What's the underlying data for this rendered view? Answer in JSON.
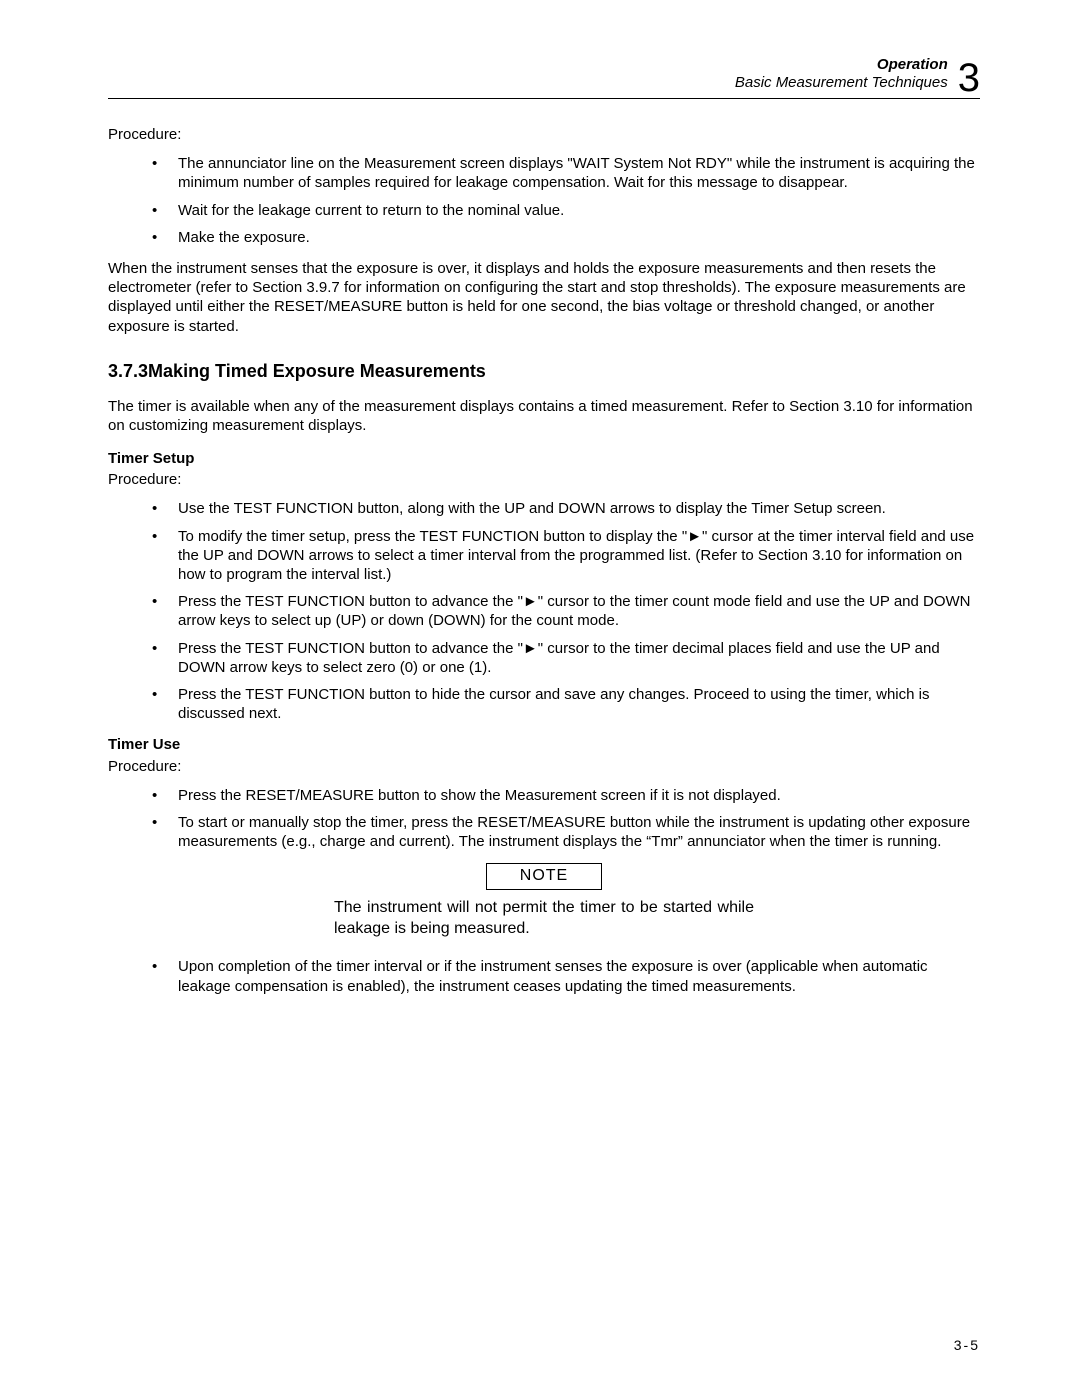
{
  "header": {
    "line1": "Operation",
    "line2": "Basic Measurement Techniques",
    "chapter": "3"
  },
  "intro": {
    "procedure_label": "Procedure:",
    "bullets": [
      "The annunciator line on the Measurement screen displays \"WAIT System Not RDY\" while the instrument is acquiring the minimum number of samples required for leakage compensation.  Wait for this message to disappear.",
      "Wait for the leakage current to return to the nominal value.",
      "Make the exposure."
    ],
    "para_after": "When the instrument senses that the exposure is over, it displays and holds the exposure measurements and then resets the electrometer (refer to Section 3.9.7 for information on configuring the start and stop thresholds).  The exposure measurements are displayed until either the RESET/MEASURE button is held for one second, the bias voltage or threshold changed, or another exposure is started."
  },
  "section": {
    "number": "3.7.3",
    "title": "Making Timed Exposure Measurements",
    "intro_para": "The timer is available when any of the measurement displays contains a timed measurement.  Refer to Section 3.10 for information on customizing measurement displays."
  },
  "timer_setup": {
    "heading": "Timer Setup",
    "procedure_label": "Procedure:",
    "bullets": [
      "Use the TEST FUNCTION button, along with the UP and DOWN arrows to display the Timer Setup screen.",
      "To modify the timer setup, press the TEST FUNCTION button to display the \"►\" cursor at the timer interval field and use the UP and DOWN arrows to select a timer interval from the programmed list.  (Refer to Section 3.10 for information on how to program the interval list.)",
      "Press the TEST FUNCTION button to advance the \"►\" cursor to the timer count mode field and use the UP and DOWN arrow keys to select up (UP) or down (DOWN) for the count mode.",
      "Press the TEST FUNCTION button to advance the \"►\" cursor to the timer decimal places field and use the UP and DOWN arrow keys to select zero (0) or one (1).",
      "Press the TEST FUNCTION button to hide the cursor and save any changes.  Proceed to using the timer, which is discussed next."
    ]
  },
  "timer_use": {
    "heading": "Timer Use",
    "procedure_label": "Procedure:",
    "bullets_a": [
      "Press the RESET/MEASURE button to show the Measurement screen if it is not displayed.",
      "To start or manually stop the timer, press the RESET/MEASURE button while the instrument is updating other exposure measurements (e.g., charge and current).  The instrument displays the “Tmr” annunciator when the timer is running."
    ],
    "note_label": "NOTE",
    "note_text": "The instrument will not permit the timer to be started while leakage is being measured.",
    "bullets_b": [
      "Upon completion of the timer interval or if the instrument senses the exposure is over (applicable when automatic leakage compensation is enabled), the instrument ceases updating the timed measurements."
    ]
  },
  "page_number": "3-5"
}
